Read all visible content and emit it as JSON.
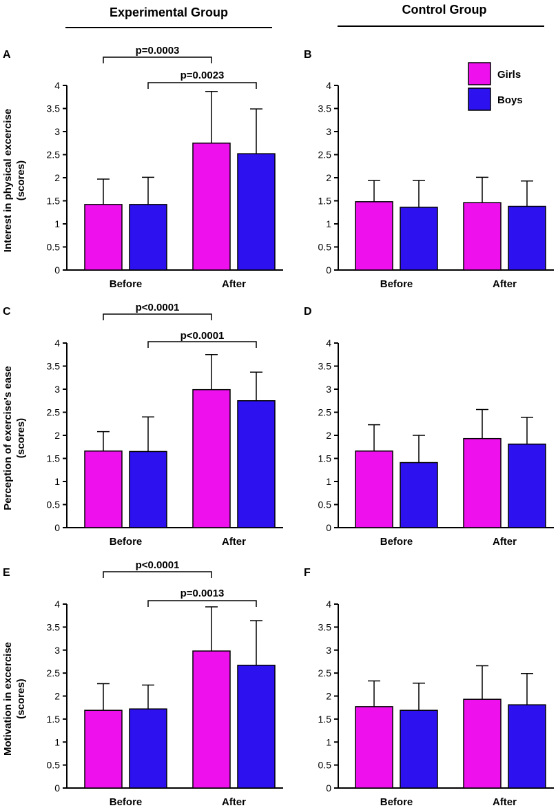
{
  "headers": {
    "experimental": "Experimental Group",
    "control": "Control Group"
  },
  "legend": [
    {
      "label": "Girls",
      "color": "#ee11ee"
    },
    {
      "label": "Boys",
      "color": "#2d11ee"
    }
  ],
  "chart_data": [
    {
      "panel": "A",
      "type": "bar",
      "group": "Experimental Group",
      "ylabel": [
        "Interest in physical excercise",
        "(scores)"
      ],
      "ylim": [
        0,
        4
      ],
      "yticks": [
        "0",
        "0.5",
        "1",
        "1.5",
        "2",
        "2.5",
        "3",
        "3.5",
        "4"
      ],
      "categories": [
        "Before",
        "After"
      ],
      "series": [
        {
          "name": "Girls",
          "values": [
            1.42,
            2.75
          ],
          "errors": [
            0.55,
            1.12
          ]
        },
        {
          "name": "Boys",
          "values": [
            1.42,
            2.52
          ],
          "errors": [
            0.59,
            0.97
          ]
        }
      ],
      "significance": [
        {
          "label": "p=0.0003",
          "from": "Girls Before",
          "to": "Girls After"
        },
        {
          "label": "p=0.0023",
          "from": "Boys Before",
          "to": "Boys After"
        }
      ]
    },
    {
      "panel": "B",
      "type": "bar",
      "group": "Control Group",
      "ylabel": [],
      "ylim": [
        0,
        4
      ],
      "yticks": [
        "0",
        "0.5",
        "1",
        "1.5",
        "2",
        "2.5",
        "3",
        "3.5",
        "4"
      ],
      "categories": [
        "Before",
        "After"
      ],
      "series": [
        {
          "name": "Girls",
          "values": [
            1.48,
            1.46
          ],
          "errors": [
            0.46,
            0.55
          ]
        },
        {
          "name": "Boys",
          "values": [
            1.36,
            1.38
          ],
          "errors": [
            0.58,
            0.55
          ]
        }
      ],
      "significance": []
    },
    {
      "panel": "C",
      "type": "bar",
      "group": "Experimental Group",
      "ylabel": [
        "Perception of exercise's ease",
        "(scores)"
      ],
      "ylim": [
        0,
        4
      ],
      "yticks": [
        "0",
        "0.5",
        "1",
        "1.5",
        "2",
        "2.5",
        "3",
        "3.5",
        "4"
      ],
      "categories": [
        "Before",
        "After"
      ],
      "series": [
        {
          "name": "Girls",
          "values": [
            1.66,
            2.99
          ],
          "errors": [
            0.42,
            0.76
          ]
        },
        {
          "name": "Boys",
          "values": [
            1.65,
            2.75
          ],
          "errors": [
            0.75,
            0.62
          ]
        }
      ],
      "significance": [
        {
          "label": "p<0.0001",
          "from": "Girls Before",
          "to": "Girls After"
        },
        {
          "label": "p<0.0001",
          "from": "Boys Before",
          "to": "Boys After"
        }
      ]
    },
    {
      "panel": "D",
      "type": "bar",
      "group": "Control Group",
      "ylabel": [],
      "ylim": [
        0,
        4
      ],
      "yticks": [
        "0",
        "0.5",
        "1",
        "1.5",
        "2",
        "2.5",
        "3",
        "3.5",
        "4"
      ],
      "categories": [
        "Before",
        "After"
      ],
      "series": [
        {
          "name": "Girls",
          "values": [
            1.66,
            1.93
          ],
          "errors": [
            0.57,
            0.63
          ]
        },
        {
          "name": "Boys",
          "values": [
            1.41,
            1.81
          ],
          "errors": [
            0.59,
            0.58
          ]
        }
      ],
      "significance": []
    },
    {
      "panel": "E",
      "type": "bar",
      "group": "Experimental Group",
      "ylabel": [
        "Motivation in excercise",
        "(scores)"
      ],
      "ylim": [
        0,
        4
      ],
      "yticks": [
        "0",
        "0.5",
        "1",
        "1.5",
        "2",
        "2.5",
        "3",
        "3.5",
        "4"
      ],
      "categories": [
        "Before",
        "After"
      ],
      "series": [
        {
          "name": "Girls",
          "values": [
            1.69,
            2.98
          ],
          "errors": [
            0.58,
            0.96
          ]
        },
        {
          "name": "Boys",
          "values": [
            1.72,
            2.67
          ],
          "errors": [
            0.52,
            0.97
          ]
        }
      ],
      "significance": [
        {
          "label": "p<0.0001",
          "from": "Girls Before",
          "to": "Girls After"
        },
        {
          "label": "p=0.0013",
          "from": "Boys Before",
          "to": "Boys After"
        }
      ]
    },
    {
      "panel": "F",
      "type": "bar",
      "group": "Control Group",
      "ylabel": [],
      "ylim": [
        0,
        4
      ],
      "yticks": [
        "0",
        "0.5",
        "1",
        "1.5",
        "2",
        "2.5",
        "3",
        "3.5",
        "4"
      ],
      "categories": [
        "Before",
        "After"
      ],
      "series": [
        {
          "name": "Girls",
          "values": [
            1.77,
            1.93
          ],
          "errors": [
            0.56,
            0.73
          ]
        },
        {
          "name": "Boys",
          "values": [
            1.69,
            1.81
          ],
          "errors": [
            0.59,
            0.68
          ]
        }
      ],
      "significance": []
    }
  ]
}
